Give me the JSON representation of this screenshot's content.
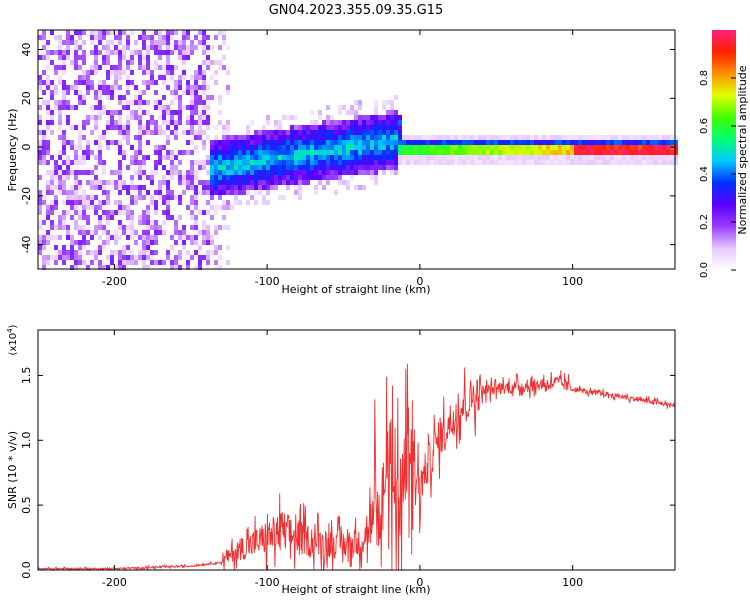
{
  "title": "GN04.2023.355.09.35.G15",
  "colors": {
    "series": "#f03030",
    "axis": "#000000",
    "bg": "#ffffff"
  },
  "chart_data": [
    {
      "type": "heatmap",
      "name": "spectrogram",
      "xlabel": "Height of straight line (km)",
      "ylabel": "Frequency (Hz)",
      "xlim": [
        -250,
        167
      ],
      "ylim": [
        -50,
        48
      ],
      "xticks": [
        -200,
        -100,
        0,
        100
      ],
      "xtick_labels": [
        "-200",
        "-100",
        "0",
        "100"
      ],
      "yticks": [
        -40,
        -20,
        0,
        20,
        40
      ],
      "ytick_labels": [
        "-40",
        "-20",
        "0",
        "20",
        "40"
      ],
      "colorbar": {
        "label": "Normalized spectral amplitude",
        "range": [
          0,
          1
        ],
        "ticks": [
          0,
          0.2,
          0.4,
          0.6,
          0.8
        ],
        "tick_labels": [
          "0.0",
          "0.2",
          "0.4",
          "0.6",
          "0.8"
        ],
        "colormap": [
          "#ffffff",
          "#e6c8ff",
          "#9a3cff",
          "#5a00ff",
          "#0030ff",
          "#00c8ff",
          "#00ff70",
          "#40ff00",
          "#e0ff00",
          "#ff9000",
          "#ff2000",
          "#ff2080"
        ]
      },
      "description_regions": [
        {
          "x_range": [
            -250,
            -125
          ],
          "freq_range": [
            -50,
            48
          ],
          "amplitude": "low (noise, violet)"
        },
        {
          "x_range": [
            -140,
            -15
          ],
          "freq_center_start": -8,
          "freq_center_end": 4,
          "amplitude": "0.2–0.5 (blue/cyan/green)"
        },
        {
          "x_range": [
            -15,
            167
          ],
          "freq_center": 0,
          "amplitude": "0.5–1.0 (green to red)"
        }
      ]
    },
    {
      "type": "line",
      "name": "snr",
      "xlabel": "Height of straight line (km)",
      "ylabel": "SNR (10 * v/v)",
      "scale_label": "(x10",
      "scale_exponent": "4",
      "scale_suffix": ")",
      "xlim": [
        -250,
        167
      ],
      "ylim": [
        0,
        1.85
      ],
      "xticks": [
        -200,
        -100,
        0,
        100
      ],
      "xtick_labels": [
        "-200",
        "-100",
        "0",
        "100"
      ],
      "yticks": [
        0,
        0.5,
        1.0,
        1.5
      ],
      "ytick_labels": [
        "0.0",
        "0.5",
        "1.0",
        "1.5"
      ],
      "series": [
        {
          "name": "SNR",
          "color": "#f03030",
          "x": [
            -250,
            -200,
            -150,
            -130,
            -120,
            -100,
            -90,
            -80,
            -60,
            -40,
            -30,
            -20,
            -15,
            -10,
            0,
            10,
            20,
            30,
            40,
            50,
            60,
            70,
            80,
            90,
            100,
            110,
            120,
            130,
            140,
            150,
            160,
            167
          ],
          "y": [
            0.01,
            0.01,
            0.03,
            0.06,
            0.15,
            0.25,
            0.3,
            0.25,
            0.2,
            0.2,
            0.4,
            0.7,
            0.9,
            0.7,
            0.65,
            0.95,
            1.15,
            1.3,
            1.38,
            1.4,
            1.41,
            1.42,
            1.43,
            1.45,
            1.4,
            1.37,
            1.36,
            1.34,
            1.32,
            1.3,
            1.28,
            1.27
          ]
        }
      ]
    }
  ]
}
